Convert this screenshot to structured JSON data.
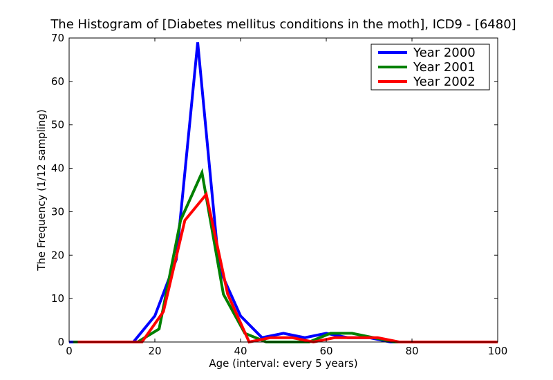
{
  "chart_data": {
    "type": "line",
    "title": "The Histogram of [Diabetes mellitus conditions in the moth], ICD9 - [6480]",
    "xlabel": "Age (interval: every 5 years)",
    "ylabel": "The Frequency (1/12 sampling)",
    "xlim": [
      0,
      100
    ],
    "ylim": [
      0,
      70
    ],
    "xticks": [
      0,
      20,
      40,
      60,
      80,
      100
    ],
    "yticks": [
      0,
      10,
      20,
      30,
      40,
      50,
      60,
      70
    ],
    "grid": false,
    "legend_position": "top-right",
    "series": [
      {
        "name": "Year 2000",
        "color": "#0000ff",
        "x": [
          0,
          5,
          10,
          15,
          20,
          25,
          30,
          35,
          40,
          45,
          50,
          55,
          60,
          65,
          70,
          75,
          80,
          85,
          90,
          95,
          100
        ],
        "y": [
          0,
          0,
          0,
          0,
          6,
          19,
          69,
          17,
          6,
          1,
          2,
          1,
          2,
          1,
          1,
          0,
          0,
          0,
          0,
          0,
          0
        ]
      },
      {
        "name": "Year 2001",
        "color": "#008000",
        "x": [
          1,
          6,
          11,
          16,
          21,
          26,
          31,
          36,
          41,
          46,
          51,
          56,
          61,
          66,
          71,
          76,
          81,
          86,
          91,
          96,
          100
        ],
        "y": [
          0,
          0,
          0,
          0,
          3,
          28,
          39,
          11,
          2,
          0,
          0,
          0,
          2,
          2,
          1,
          0,
          0,
          0,
          0,
          0,
          0
        ]
      },
      {
        "name": "Year 2002",
        "color": "#ff0000",
        "x": [
          2,
          7,
          12,
          17,
          22,
          27,
          32,
          37,
          42,
          47,
          52,
          57,
          62,
          67,
          72,
          77,
          82,
          87,
          92,
          97,
          100
        ],
        "y": [
          0,
          0,
          0,
          0,
          7,
          28,
          34,
          11,
          0,
          1,
          1,
          0,
          1,
          1,
          1,
          0,
          0,
          0,
          0,
          0,
          0
        ]
      }
    ]
  }
}
